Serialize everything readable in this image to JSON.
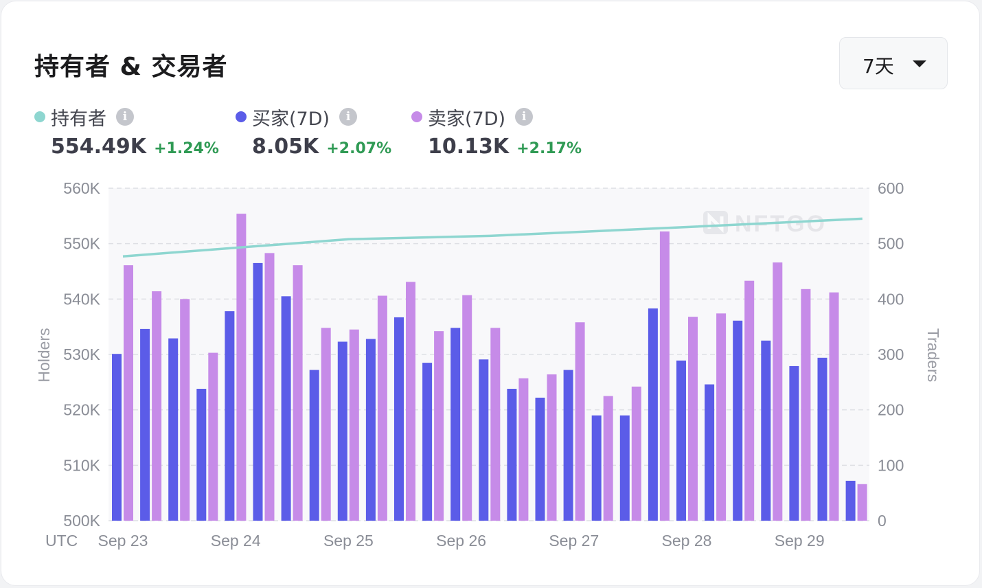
{
  "title": "持有者 & 交易者",
  "range_select": {
    "value": "7天"
  },
  "metrics": [
    {
      "name": "持有者",
      "value": "554.49K",
      "change": "+1.24%",
      "color": "#8ed6d0"
    },
    {
      "name": "买家(7D)",
      "value": "8.05K",
      "change": "+2.07%",
      "color": "#5b5ce8"
    },
    {
      "name": "卖家(7D)",
      "value": "10.13K",
      "change": "+2.17%",
      "color": "#c68be8"
    }
  ],
  "watermark": "NFTGO",
  "chart_data": {
    "type": "bar",
    "timezone_label": "UTC",
    "y_left": {
      "label": "Holders",
      "ticks": [
        "500K",
        "510K",
        "520K",
        "530K",
        "540K",
        "550K",
        "560K"
      ],
      "min": 500000,
      "max": 560000
    },
    "y_right": {
      "label": "Traders",
      "ticks": [
        "0",
        "100",
        "200",
        "300",
        "400",
        "500",
        "600"
      ],
      "min": 0,
      "max": 600
    },
    "x_labels": [
      "Sep 23",
      "Sep 24",
      "Sep 25",
      "Sep 26",
      "Sep 27",
      "Sep 28",
      "Sep 29"
    ],
    "grid": true,
    "series": [
      {
        "name": "买家(7D)",
        "axis": "right",
        "color": "#5b5ce8",
        "values": [
          301,
          346,
          329,
          238,
          378,
          465,
          405,
          272,
          323,
          328,
          367,
          285,
          348,
          291,
          238,
          222,
          272,
          190,
          190,
          383,
          289,
          246,
          361,
          325,
          279,
          294,
          72
        ]
      },
      {
        "name": "卖家(7D)",
        "axis": "right",
        "color": "#c68be8",
        "values": [
          461,
          414,
          400,
          303,
          554,
          483,
          461,
          348,
          345,
          406,
          431,
          342,
          407,
          348,
          257,
          264,
          358,
          225,
          242,
          522,
          368,
          374,
          433,
          466,
          418,
          412,
          66
        ]
      },
      {
        "name": "持有者",
        "axis": "left",
        "type": "line",
        "color": "#8ed6d0",
        "points": [
          [
            0,
            547700
          ],
          [
            8,
            550800
          ],
          [
            13,
            551400
          ],
          [
            20,
            553000
          ],
          [
            26.2,
            554490
          ]
        ]
      }
    ]
  }
}
